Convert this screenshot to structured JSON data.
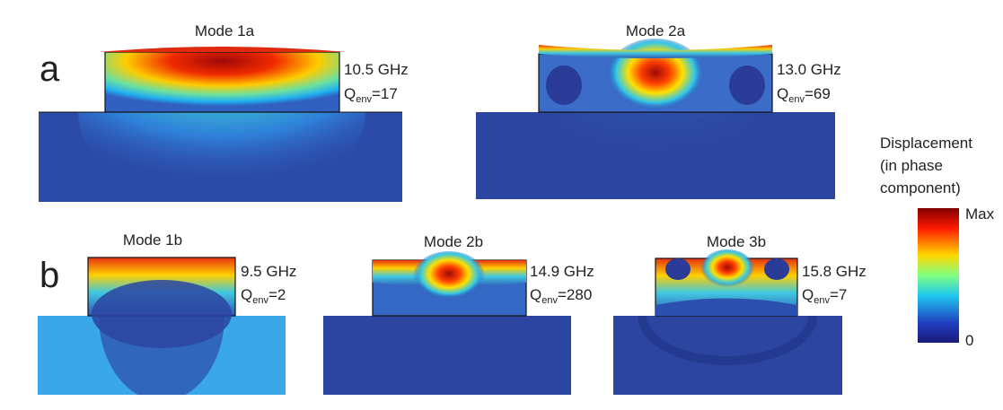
{
  "panel_labels": [
    "a",
    "b"
  ],
  "modes": [
    {
      "title": "Mode 1a",
      "frequency": "10.5 GHz",
      "q": "Q",
      "q_sub": "env",
      "q_value": "=17"
    },
    {
      "title": "Mode 2a",
      "frequency": "13.0 GHz",
      "q": "Q",
      "q_sub": "env",
      "q_value": "=69"
    },
    {
      "title": "Mode 1b",
      "frequency": "9.5 GHz",
      "q": "Q",
      "q_sub": "env",
      "q_value": "=2"
    },
    {
      "title": "Mode 2b",
      "frequency": "14.9 GHz",
      "q": "Q",
      "q_sub": "env",
      "q_value": "=280"
    },
    {
      "title": "Mode 3b",
      "frequency": "15.8 GHz",
      "q": "Q",
      "q_sub": "env",
      "q_value": "=7"
    }
  ],
  "colorbar": {
    "title_lines": [
      "Displacement",
      "(in phase",
      "component)"
    ],
    "max_label": "Max",
    "min_label": "0"
  }
}
